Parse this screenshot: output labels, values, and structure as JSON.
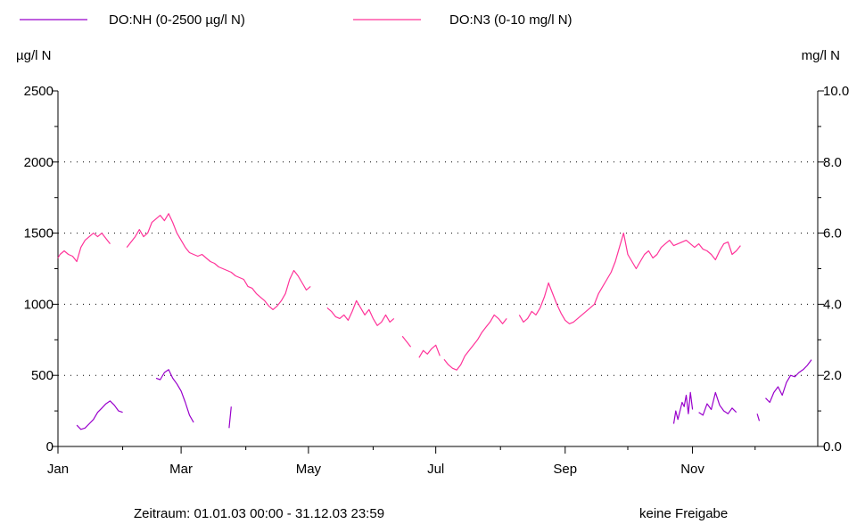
{
  "chart_data": {
    "type": "line",
    "legend_position": "top-left",
    "grid": "horizontal dotted",
    "left_axis": {
      "unit": "µg/l N",
      "ylim": [
        0,
        2500
      ],
      "ticks": [
        "0",
        "500",
        "1000",
        "1500",
        "2000",
        "2500"
      ]
    },
    "right_axis": {
      "unit": "mg/l N",
      "ylim": [
        0,
        10
      ],
      "ticks": [
        "0.0",
        "2.0",
        "4.0",
        "6.0",
        "8.0",
        "10.0"
      ]
    },
    "x_axis": {
      "range_days": [
        1,
        365
      ],
      "tick_labels": [
        {
          "label": "Jan",
          "day": 1
        },
        {
          "label": "Mar",
          "day": 60
        },
        {
          "label": "May",
          "day": 121
        },
        {
          "label": "Jul",
          "day": 182
        },
        {
          "label": "Sep",
          "day": 244
        },
        {
          "label": "Nov",
          "day": 305
        }
      ]
    },
    "series": [
      {
        "name": "DO:NH (0-2500 µg/l N)",
        "color": "#9900cc",
        "axis": "left",
        "segments": [
          [
            [
              10,
              150
            ],
            [
              12,
              120
            ],
            [
              14,
              130
            ],
            [
              16,
              160
            ],
            [
              18,
              190
            ],
            [
              20,
              240
            ],
            [
              22,
              270
            ],
            [
              24,
              300
            ],
            [
              26,
              320
            ],
            [
              28,
              290
            ],
            [
              30,
              250
            ],
            [
              32,
              240
            ]
          ],
          [
            [
              48,
              480
            ],
            [
              50,
              470
            ],
            [
              52,
              520
            ],
            [
              54,
              540
            ],
            [
              56,
              480
            ],
            [
              58,
              440
            ],
            [
              60,
              390
            ],
            [
              62,
              310
            ],
            [
              64,
              220
            ],
            [
              66,
              170
            ]
          ],
          [
            [
              83,
              130
            ],
            [
              84,
              280
            ]
          ],
          [
            [
              296,
              160
            ],
            [
              297,
              250
            ],
            [
              298,
              190
            ],
            [
              300,
              310
            ],
            [
              301,
              280
            ],
            [
              302,
              360
            ],
            [
              303,
              230
            ],
            [
              304,
              380
            ],
            [
              305,
              260
            ]
          ],
          [
            [
              308,
              240
            ],
            [
              310,
              220
            ],
            [
              312,
              300
            ],
            [
              314,
              260
            ],
            [
              316,
              380
            ],
            [
              318,
              290
            ],
            [
              320,
              250
            ],
            [
              322,
              230
            ],
            [
              324,
              270
            ],
            [
              326,
              240
            ]
          ],
          [
            [
              336,
              230
            ],
            [
              337,
              180
            ]
          ],
          [
            [
              340,
              340
            ],
            [
              342,
              310
            ],
            [
              344,
              380
            ],
            [
              346,
              420
            ],
            [
              348,
              360
            ],
            [
              350,
              450
            ],
            [
              352,
              500
            ],
            [
              354,
              490
            ],
            [
              356,
              520
            ],
            [
              358,
              540
            ],
            [
              360,
              570
            ],
            [
              362,
              610
            ]
          ]
        ]
      },
      {
        "name": "DO:N3 (0-10 mg/l N)",
        "color": "#ff3399",
        "axis": "right",
        "segments": [
          [
            [
              1,
              5.3
            ],
            [
              2,
              5.4
            ],
            [
              4,
              5.5
            ],
            [
              6,
              5.4
            ],
            [
              8,
              5.35
            ],
            [
              10,
              5.2
            ],
            [
              12,
              5.6
            ],
            [
              14,
              5.8
            ],
            [
              16,
              5.9
            ],
            [
              18,
              6.0
            ],
            [
              20,
              5.9
            ],
            [
              22,
              6.0
            ],
            [
              24,
              5.85
            ],
            [
              26,
              5.7
            ]
          ],
          [
            [
              34,
              5.6
            ],
            [
              36,
              5.75
            ],
            [
              38,
              5.9
            ],
            [
              40,
              6.1
            ],
            [
              42,
              5.9
            ],
            [
              44,
              6.0
            ],
            [
              46,
              6.3
            ],
            [
              48,
              6.4
            ],
            [
              50,
              6.5
            ],
            [
              52,
              6.35
            ],
            [
              54,
              6.55
            ],
            [
              56,
              6.3
            ],
            [
              58,
              6.0
            ],
            [
              60,
              5.8
            ],
            [
              62,
              5.6
            ],
            [
              64,
              5.45
            ],
            [
              66,
              5.4
            ],
            [
              68,
              5.35
            ],
            [
              70,
              5.4
            ],
            [
              72,
              5.3
            ],
            [
              74,
              5.2
            ],
            [
              76,
              5.15
            ],
            [
              78,
              5.05
            ],
            [
              80,
              5.0
            ],
            [
              82,
              4.95
            ],
            [
              84,
              4.9
            ],
            [
              86,
              4.8
            ],
            [
              88,
              4.75
            ],
            [
              90,
              4.7
            ],
            [
              92,
              4.5
            ],
            [
              94,
              4.45
            ],
            [
              96,
              4.3
            ],
            [
              98,
              4.2
            ],
            [
              100,
              4.1
            ],
            [
              102,
              3.95
            ],
            [
              104,
              3.85
            ],
            [
              106,
              3.95
            ],
            [
              108,
              4.1
            ],
            [
              110,
              4.3
            ],
            [
              112,
              4.7
            ],
            [
              114,
              4.95
            ],
            [
              116,
              4.8
            ],
            [
              118,
              4.6
            ],
            [
              120,
              4.4
            ],
            [
              122,
              4.5
            ]
          ],
          [
            [
              130,
              3.9
            ],
            [
              132,
              3.8
            ],
            [
              134,
              3.65
            ],
            [
              136,
              3.6
            ],
            [
              138,
              3.7
            ],
            [
              140,
              3.55
            ],
            [
              142,
              3.8
            ],
            [
              144,
              4.1
            ],
            [
              146,
              3.9
            ],
            [
              148,
              3.7
            ],
            [
              150,
              3.85
            ],
            [
              152,
              3.6
            ],
            [
              154,
              3.4
            ],
            [
              156,
              3.5
            ],
            [
              158,
              3.7
            ],
            [
              160,
              3.5
            ],
            [
              162,
              3.6
            ]
          ],
          [
            [
              166,
              3.1
            ],
            [
              168,
              2.95
            ],
            [
              170,
              2.8
            ]
          ],
          [
            [
              174,
              2.5
            ],
            [
              176,
              2.7
            ],
            [
              178,
              2.6
            ],
            [
              180,
              2.75
            ],
            [
              182,
              2.85
            ],
            [
              184,
              2.55
            ]
          ],
          [
            [
              186,
              2.45
            ],
            [
              188,
              2.3
            ],
            [
              190,
              2.2
            ],
            [
              192,
              2.15
            ],
            [
              194,
              2.3
            ],
            [
              196,
              2.55
            ],
            [
              198,
              2.7
            ],
            [
              200,
              2.85
            ],
            [
              202,
              3.0
            ],
            [
              204,
              3.2
            ],
            [
              206,
              3.35
            ],
            [
              208,
              3.5
            ],
            [
              210,
              3.7
            ],
            [
              212,
              3.6
            ],
            [
              214,
              3.45
            ],
            [
              216,
              3.6
            ]
          ],
          [
            [
              222,
              3.7
            ],
            [
              224,
              3.5
            ],
            [
              226,
              3.6
            ],
            [
              228,
              3.8
            ],
            [
              230,
              3.7
            ],
            [
              232,
              3.9
            ],
            [
              234,
              4.2
            ],
            [
              236,
              4.6
            ],
            [
              238,
              4.3
            ],
            [
              240,
              4.0
            ],
            [
              242,
              3.75
            ],
            [
              244,
              3.55
            ],
            [
              246,
              3.45
            ],
            [
              248,
              3.5
            ],
            [
              250,
              3.6
            ],
            [
              252,
              3.7
            ],
            [
              254,
              3.8
            ],
            [
              256,
              3.9
            ],
            [
              258,
              4.0
            ],
            [
              260,
              4.3
            ],
            [
              262,
              4.5
            ],
            [
              264,
              4.7
            ],
            [
              266,
              4.9
            ],
            [
              268,
              5.2
            ],
            [
              270,
              5.6
            ],
            [
              272,
              6.0
            ],
            [
              274,
              5.4
            ],
            [
              276,
              5.2
            ],
            [
              278,
              5.0
            ],
            [
              280,
              5.2
            ],
            [
              282,
              5.4
            ],
            [
              284,
              5.5
            ],
            [
              286,
              5.3
            ],
            [
              288,
              5.4
            ],
            [
              290,
              5.6
            ],
            [
              292,
              5.7
            ],
            [
              294,
              5.8
            ],
            [
              296,
              5.65
            ],
            [
              298,
              5.7
            ],
            [
              300,
              5.75
            ],
            [
              302,
              5.8
            ],
            [
              304,
              5.7
            ],
            [
              306,
              5.6
            ],
            [
              308,
              5.7
            ],
            [
              310,
              5.55
            ],
            [
              312,
              5.5
            ],
            [
              314,
              5.4
            ],
            [
              316,
              5.25
            ],
            [
              318,
              5.5
            ],
            [
              320,
              5.7
            ],
            [
              322,
              5.75
            ],
            [
              324,
              5.4
            ],
            [
              326,
              5.5
            ],
            [
              328,
              5.65
            ]
          ]
        ]
      }
    ]
  },
  "footer": {
    "period": "Zeitraum: 01.01.03 00:00 - 31.12.03 23:59",
    "status": "keine Freigabe"
  }
}
